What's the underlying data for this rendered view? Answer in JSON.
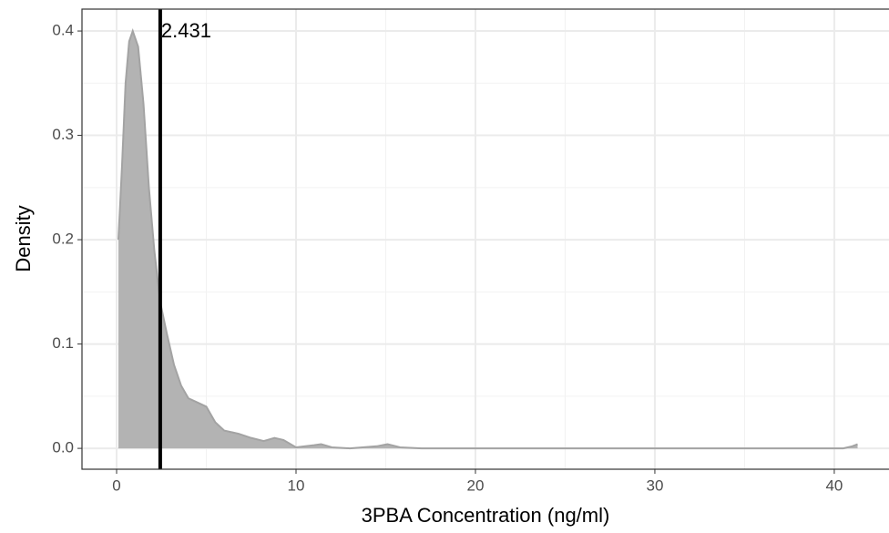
{
  "chart_data": {
    "type": "area",
    "x_label": "3PBA Concentration (ng/ml)",
    "y_label": "Density",
    "x": [
      0.1,
      0.3,
      0.5,
      0.7,
      0.9,
      1.2,
      1.5,
      1.8,
      2.1,
      2.431,
      2.8,
      3.2,
      3.6,
      4.0,
      4.5,
      5.0,
      5.5,
      6.0,
      6.8,
      7.5,
      8.2,
      8.8,
      9.3,
      10,
      11,
      11.4,
      12,
      13,
      14.5,
      15.1,
      15.8,
      17,
      25,
      35,
      40.5,
      41.0,
      41.3
    ],
    "values": [
      0.2,
      0.27,
      0.35,
      0.39,
      0.4,
      0.385,
      0.33,
      0.25,
      0.19,
      0.14,
      0.11,
      0.08,
      0.06,
      0.048,
      0.044,
      0.04,
      0.025,
      0.017,
      0.014,
      0.01,
      0.007,
      0.01,
      0.008,
      0.001,
      0.003,
      0.004,
      0.001,
      0,
      0.002,
      0.004,
      0.001,
      0,
      0,
      0,
      0,
      0.002,
      0.004
    ],
    "color": "#b3b3b3",
    "vline": 2.431,
    "xlim": [
      -1.93,
      43.05
    ],
    "ylim": [
      -0.02,
      0.421
    ],
    "xticks": [
      0,
      10,
      20,
      30,
      40
    ],
    "yticks": [
      {
        "value": 0,
        "label": "0.0"
      },
      0.1,
      0.2,
      0.3,
      0.4
    ],
    "xminor": [
      5,
      15,
      25,
      35
    ],
    "yminor": [
      0.05,
      0.15,
      0.25,
      0.35
    ],
    "grid": true
  }
}
